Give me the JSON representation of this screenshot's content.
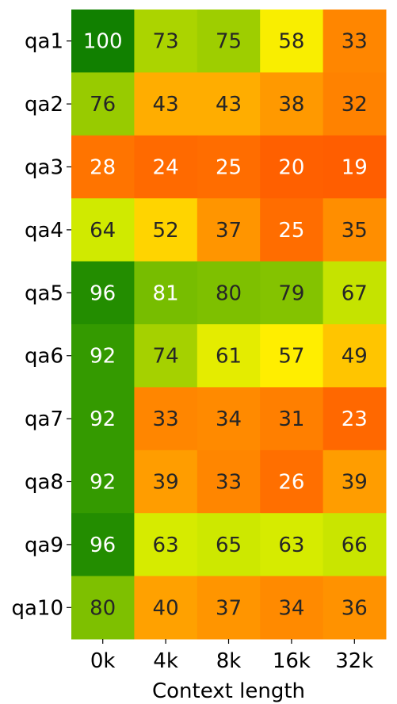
{
  "chart_data": {
    "type": "heatmap",
    "xlabel": "Context length",
    "ylabel": "",
    "x_categories": [
      "0k",
      "4k",
      "8k",
      "16k",
      "32k"
    ],
    "y_categories": [
      "qa1",
      "qa2",
      "qa3",
      "qa4",
      "qa5",
      "qa6",
      "qa7",
      "qa8",
      "qa9",
      "qa10"
    ],
    "values": [
      [
        100,
        73,
        75,
        58,
        33
      ],
      [
        76,
        43,
        43,
        38,
        32
      ],
      [
        28,
        24,
        25,
        20,
        19
      ],
      [
        64,
        52,
        37,
        25,
        35
      ],
      [
        96,
        81,
        80,
        79,
        67
      ],
      [
        92,
        74,
        61,
        57,
        49
      ],
      [
        92,
        33,
        34,
        31,
        23
      ],
      [
        92,
        39,
        33,
        26,
        39
      ],
      [
        96,
        63,
        65,
        63,
        66
      ],
      [
        80,
        40,
        37,
        34,
        36
      ]
    ],
    "colormap": "red-yellow-green",
    "value_range": [
      19,
      100
    ],
    "colorbar": false,
    "grid": false,
    "legend": "none"
  }
}
